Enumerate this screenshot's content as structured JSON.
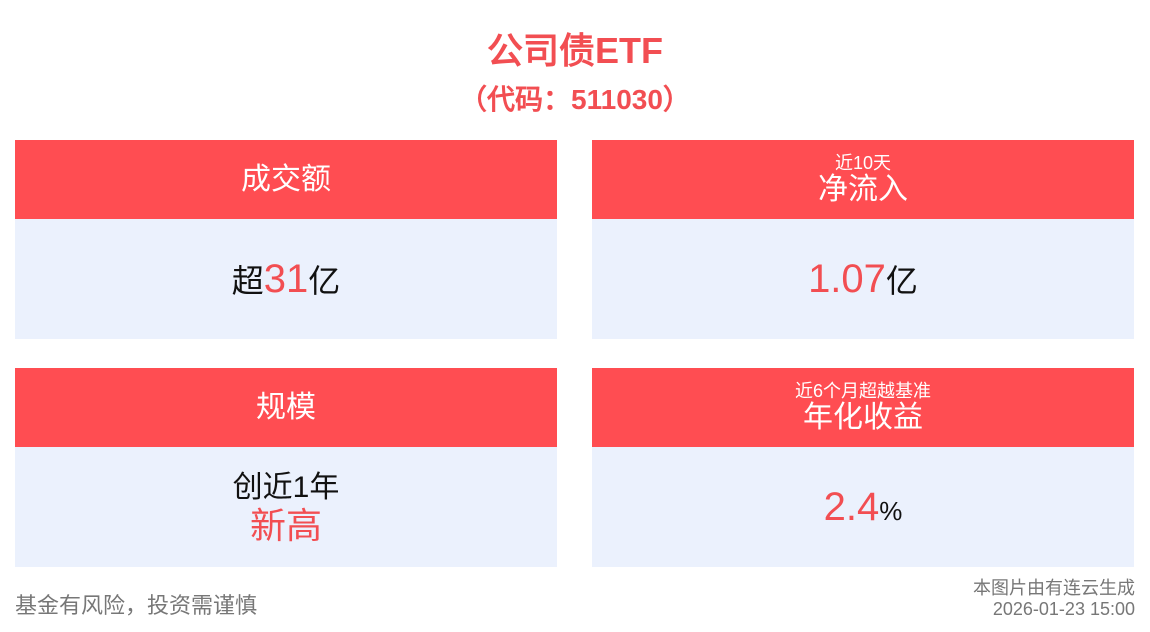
{
  "header": {
    "title": "公司债ETF",
    "subtitle": "（代码：511030）"
  },
  "cards": [
    {
      "label": "成交额",
      "value": {
        "prefix": "超",
        "number": 31,
        "suffix": "亿"
      }
    },
    {
      "caption": "近10天",
      "label": "净流入",
      "value": {
        "number": 1.07,
        "suffix": "亿"
      }
    },
    {
      "label": "规模",
      "value": {
        "text": "创近1年",
        "highlight": "新高"
      }
    },
    {
      "caption": "近6个月超越基准",
      "label": "年化收益",
      "value": {
        "number": 2.4,
        "suffix": "%"
      }
    }
  ],
  "footer": {
    "disclaimer": "基金有风险，投资需谨慎",
    "source": "本图片由有连云生成",
    "timestamp": "2026-01-23 15:00"
  }
}
